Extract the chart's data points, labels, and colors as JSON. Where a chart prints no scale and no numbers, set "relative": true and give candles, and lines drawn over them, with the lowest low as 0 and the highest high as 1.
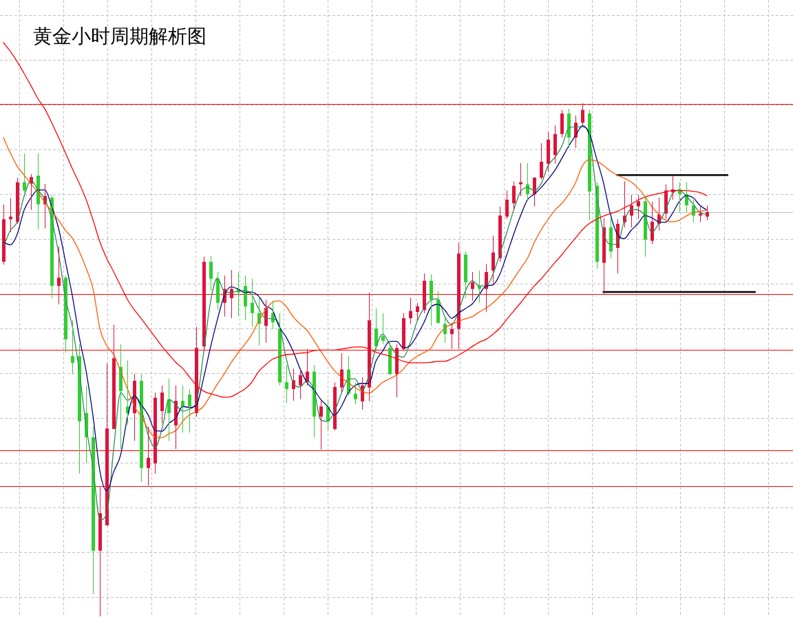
{
  "chart_data": {
    "type": "candlestick",
    "title": "黄金小时周期解析图",
    "relative": true,
    "grid": true,
    "categories": [
      null,
      null,
      null,
      null,
      null,
      null,
      null,
      null,
      null,
      null,
      null,
      null,
      null,
      null,
      null,
      null,
      null,
      null,
      null,
      null,
      null,
      null,
      null,
      null,
      null,
      null,
      null,
      null,
      null,
      null,
      null,
      null,
      null,
      null,
      null,
      null,
      null,
      null,
      null,
      null,
      null,
      null,
      null,
      null,
      null,
      null,
      null,
      null,
      null,
      null,
      null,
      null,
      null,
      null,
      null,
      null,
      null,
      null,
      null,
      null,
      null,
      null,
      null,
      null,
      null,
      null,
      null,
      null,
      null,
      null,
      null,
      null,
      null,
      null,
      null,
      null,
      null,
      null,
      null,
      null,
      null,
      null,
      null,
      null,
      null,
      null,
      null,
      null,
      null,
      null,
      null,
      null,
      null,
      null,
      null,
      null,
      null,
      null,
      null,
      null,
      null,
      null,
      null,
      null,
      null,
      null,
      null,
      null,
      null,
      null,
      null,
      null,
      null,
      null,
      null
    ],
    "ohlc": [
      [
        0.691,
        0.803,
        0.685,
        0.774
      ],
      [
        0.774,
        0.815,
        0.749,
        0.779
      ],
      [
        0.769,
        0.855,
        0.765,
        0.846
      ],
      [
        0.846,
        0.902,
        0.826,
        0.83
      ],
      [
        0.843,
        0.862,
        0.792,
        0.856
      ],
      [
        0.859,
        0.902,
        0.754,
        0.803
      ],
      [
        0.803,
        0.843,
        0.756,
        0.819
      ],
      [
        0.816,
        0.821,
        0.62,
        0.644
      ],
      [
        0.644,
        0.721,
        0.608,
        0.66
      ],
      [
        0.66,
        0.664,
        0.514,
        0.54
      ],
      [
        0.507,
        0.577,
        0.472,
        0.494
      ],
      [
        0.507,
        0.53,
        0.278,
        0.38
      ],
      [
        0.396,
        0.45,
        0.299,
        0.349
      ],
      [
        0.349,
        0.369,
        0.043,
        0.128
      ],
      [
        0.128,
        0.252,
        0,
        0.201
      ],
      [
        0.177,
        0.493,
        0.177,
        0.366
      ],
      [
        0.365,
        0.568,
        0.365,
        0.503
      ],
      [
        0.486,
        0.53,
        0.326,
        0.439
      ],
      [
        0.409,
        0.499,
        0.373,
        0.396
      ],
      [
        0.396,
        0.472,
        0.342,
        0.459
      ],
      [
        0.459,
        0.472,
        0.262,
        0.289
      ],
      [
        0.289,
        0.369,
        0.255,
        0.309
      ],
      [
        0.298,
        0.436,
        0.278,
        0.426
      ],
      [
        0.4,
        0.45,
        0.376,
        0.436
      ],
      [
        0.423,
        0.463,
        0.342,
        0.396
      ],
      [
        0.372,
        0.45,
        0.326,
        0.42
      ],
      [
        0.42,
        0.45,
        0.358,
        0.409
      ],
      [
        0.432,
        0.443,
        0.358,
        0.409
      ],
      [
        0.396,
        0.564,
        0.389,
        0.523
      ],
      [
        0.526,
        0.701,
        0.517,
        0.691
      ],
      [
        0.691,
        0.702,
        0.634,
        0.658
      ],
      [
        0.658,
        0.671,
        0.597,
        0.611
      ],
      [
        0.611,
        0.664,
        0.584,
        0.638
      ],
      [
        0.62,
        0.675,
        0.581,
        0.638
      ],
      [
        0.638,
        0.671,
        0.584,
        0.631
      ],
      [
        0.644,
        0.664,
        0.577,
        0.604
      ],
      [
        0.611,
        0.658,
        0.564,
        0.591
      ],
      [
        0.591,
        0.624,
        0.528,
        0.57
      ],
      [
        0.566,
        0.617,
        0.533,
        0.601
      ],
      [
        0.591,
        0.615,
        0.56,
        0.573
      ],
      [
        0.561,
        0.591,
        0.45,
        0.456
      ],
      [
        0.456,
        0.49,
        0.416,
        0.443
      ],
      [
        0.443,
        0.483,
        0.42,
        0.46
      ],
      [
        0.45,
        0.483,
        0.423,
        0.47
      ],
      [
        0.456,
        0.521,
        0.45,
        0.477
      ],
      [
        0.477,
        0.49,
        0.349,
        0.389
      ],
      [
        0.389,
        0.42,
        0.325,
        0.409
      ],
      [
        0.409,
        0.423,
        0.362,
        0.38
      ],
      [
        0.365,
        0.456,
        0.362,
        0.447
      ],
      [
        0.446,
        0.513,
        0.436,
        0.481
      ],
      [
        0.481,
        0.507,
        0.43,
        0.434
      ],
      [
        0.434,
        0.456,
        0.413,
        0.423
      ],
      [
        0.419,
        0.466,
        0.403,
        0.45
      ],
      [
        0.446,
        0.631,
        0.419,
        0.577
      ],
      [
        0.561,
        0.6,
        0.517,
        0.526
      ],
      [
        0.546,
        0.591,
        0.53,
        0.537
      ],
      [
        0.523,
        0.537,
        0.47,
        0.472
      ],
      [
        0.472,
        0.53,
        0.427,
        0.523
      ],
      [
        0.521,
        0.591,
        0.517,
        0.581
      ],
      [
        0.581,
        0.621,
        0.57,
        0.595
      ],
      [
        0.593,
        0.611,
        0.577,
        0.604
      ],
      [
        0.597,
        0.668,
        0.591,
        0.654
      ],
      [
        0.654,
        0.667,
        0.566,
        0.617
      ],
      [
        0.617,
        0.634,
        0.57,
        0.572
      ],
      [
        0.57,
        0.581,
        0.533,
        0.55
      ],
      [
        0.55,
        0.573,
        0.521,
        0.56
      ],
      [
        0.56,
        0.728,
        0.521,
        0.707
      ],
      [
        0.705,
        0.711,
        0.62,
        0.651
      ],
      [
        0.638,
        0.671,
        0.615,
        0.651
      ],
      [
        0.644,
        0.674,
        0.611,
        0.638
      ],
      [
        0.638,
        0.687,
        0.593,
        0.671
      ],
      [
        0.674,
        0.742,
        0.648,
        0.709
      ],
      [
        0.698,
        0.799,
        0.691,
        0.781
      ],
      [
        0.779,
        0.83,
        0.774,
        0.812
      ],
      [
        0.805,
        0.848,
        0.792,
        0.839
      ],
      [
        0.842,
        0.883,
        0.819,
        0.846
      ],
      [
        0.842,
        0.883,
        0.812,
        0.823
      ],
      [
        0.823,
        0.856,
        0.799,
        0.855
      ],
      [
        0.855,
        0.922,
        0.852,
        0.886
      ],
      [
        0.882,
        0.944,
        0.866,
        0.929
      ],
      [
        0.899,
        0.957,
        0.882,
        0.94
      ],
      [
        0.94,
        0.987,
        0.933,
        0.98
      ],
      [
        0.98,
        0.989,
        0.913,
        0.933
      ],
      [
        0.933,
        0.976,
        0.913,
        0.962
      ],
      [
        0.962,
        1,
        0.957,
        0.987
      ],
      [
        0.98,
        0.987,
        0.772,
        0.828
      ],
      [
        0.839,
        0.846,
        0.678,
        0.691
      ],
      [
        0.689,
        0.776,
        0.628,
        0.758
      ],
      [
        0.758,
        0.776,
        0.698,
        0.711
      ],
      [
        0.718,
        0.774,
        0.668,
        0.765
      ],
      [
        0.768,
        0.848,
        0.758,
        0.781
      ],
      [
        0.781,
        0.821,
        0.758,
        0.801
      ],
      [
        0.799,
        0.821,
        0.774,
        0.809
      ],
      [
        0.809,
        0.819,
        0.701,
        0.734
      ],
      [
        0.732,
        0.808,
        0.725,
        0.769
      ],
      [
        0.765,
        0.816,
        0.752,
        0.783
      ],
      [
        0.785,
        0.842,
        0.774,
        0.83
      ],
      [
        0.826,
        0.859,
        0.812,
        0.832
      ],
      [
        0.832,
        0.846,
        0.788,
        0.823
      ],
      [
        0.823,
        0.846,
        0.788,
        0.801
      ],
      [
        0.801,
        0.812,
        0.768,
        0.781
      ],
      [
        0.781,
        0.799,
        0.768,
        0.785
      ],
      [
        0.779,
        0.801,
        0.772,
        0.788
      ],
      null,
      null,
      null,
      null,
      null,
      null,
      null,
      null,
      null,
      null,
      null,
      null
    ],
    "colors": [
      "#dc143c",
      "#dc143c",
      "#dc143c",
      "#32cd32",
      "#dc143c",
      "#32cd32",
      "#dc143c",
      "#32cd32",
      "#dc143c",
      "#32cd32",
      "#32cd32",
      "#32cd32",
      "#32cd32",
      "#32cd32",
      "#dc143c",
      "#dc143c",
      "#dc143c",
      "#32cd32",
      "#32cd32",
      "#dc143c",
      "#32cd32",
      "#dc143c",
      "#dc143c",
      "#dc143c",
      "#32cd32",
      "#dc143c",
      "#32cd32",
      "#32cd32",
      "#dc143c",
      "#dc143c",
      "#32cd32",
      "#32cd32",
      "#dc143c",
      "#dc143c",
      "#32cd32",
      "#32cd32",
      "#32cd32",
      "#32cd32",
      "#dc143c",
      "#32cd32",
      "#32cd32",
      "#32cd32",
      "#dc143c",
      "#dc143c",
      "#dc143c",
      "#32cd32",
      "#dc143c",
      "#32cd32",
      "#dc143c",
      "#dc143c",
      "#32cd32",
      "#32cd32",
      "#dc143c",
      "#dc143c",
      "#32cd32",
      "#32cd32",
      "#32cd32",
      "#dc143c",
      "#dc143c",
      "#dc143c",
      "#dc143c",
      "#dc143c",
      "#32cd32",
      "#32cd32",
      "#32cd32",
      "#dc143c",
      "#dc143c",
      "#32cd32",
      "#dc143c",
      "#32cd32",
      "#dc143c",
      "#dc143c",
      "#dc143c",
      "#dc143c",
      "#dc143c",
      "#dc143c",
      "#32cd32",
      "#dc143c",
      "#dc143c",
      "#dc143c",
      "#dc143c",
      "#dc143c",
      "#32cd32",
      "#dc143c",
      "#dc143c",
      "#32cd32",
      "#32cd32",
      "#dc143c",
      "#32cd32",
      "#dc143c",
      "#dc143c",
      "#dc143c",
      "#dc143c",
      "#32cd32",
      "#dc143c",
      "#dc143c",
      "#dc143c",
      "#dc143c",
      "#32cd32",
      "#32cd32",
      "#32cd32",
      "#dc143c",
      "#dc143c",
      null,
      null,
      null,
      null,
      null,
      null,
      null,
      null,
      null,
      null,
      null,
      null
    ],
    "series": [
      {
        "type": "line",
        "color": "#ff0000",
        "values": [
          1.118,
          1.101,
          1.081,
          1.058,
          1.034,
          1.009,
          0.989,
          0.962,
          0.933,
          0.903,
          0.872,
          0.844,
          0.812,
          0.772,
          0.729,
          0.697,
          0.671,
          0.644,
          0.617,
          0.597,
          0.58,
          0.562,
          0.544,
          0.526,
          0.51,
          0.495,
          0.483,
          0.466,
          0.45,
          0.439,
          0.434,
          0.43,
          0.427,
          0.428,
          0.435,
          0.443,
          0.456,
          0.477,
          0.49,
          0.501,
          0.506,
          0.51,
          0.511,
          0.513,
          0.514,
          0.518,
          0.519,
          0.519,
          0.519,
          0.521,
          0.523,
          0.525,
          0.525,
          0.521,
          0.515,
          0.511,
          0.507,
          0.502,
          0.497,
          0.494,
          0.494,
          0.494,
          0.495,
          0.497,
          0.497,
          0.502,
          0.509,
          0.517,
          0.526,
          0.534,
          0.54,
          0.55,
          0.562,
          0.579,
          0.595,
          0.611,
          0.628,
          0.644,
          0.658,
          0.674,
          0.69,
          0.705,
          0.722,
          0.738,
          0.754,
          0.766,
          0.774,
          0.78,
          0.785,
          0.789,
          0.796,
          0.803,
          0.811,
          0.817,
          0.821,
          0.824,
          0.827,
          0.83,
          0.83,
          0.83,
          0.828,
          0.826,
          0.82,
          null,
          null,
          null,
          null,
          null,
          null,
          null,
          null,
          null,
          null,
          null,
          null
        ]
      },
      {
        "type": "line",
        "color": "#ff5a00",
        "values": [
          0.933,
          0.903,
          0.877,
          0.86,
          0.843,
          0.826,
          0.807,
          0.789,
          0.772,
          0.752,
          0.737,
          0.711,
          0.678,
          0.638,
          0.56,
          0.527,
          0.51,
          0.477,
          0.443,
          0.409,
          0.389,
          0.365,
          0.349,
          0.348,
          0.356,
          0.362,
          0.38,
          0.393,
          0.399,
          0.409,
          0.43,
          0.452,
          0.472,
          0.494,
          0.513,
          0.53,
          0.549,
          0.575,
          0.597,
          0.612,
          0.615,
          0.604,
          0.584,
          0.57,
          0.558,
          0.538,
          0.517,
          0.497,
          0.479,
          0.466,
          0.455,
          0.446,
          0.438,
          0.435,
          0.444,
          0.456,
          0.463,
          0.47,
          0.482,
          0.497,
          0.507,
          0.514,
          0.523,
          0.546,
          0.562,
          0.569,
          0.575,
          0.58,
          0.584,
          0.593,
          0.601,
          0.611,
          0.624,
          0.638,
          0.658,
          0.678,
          0.698,
          0.729,
          0.754,
          0.774,
          0.792,
          0.805,
          0.823,
          0.846,
          0.879,
          0.89,
          0.887,
          0.879,
          0.868,
          0.86,
          0.854,
          0.847,
          0.835,
          0.819,
          0.799,
          0.784,
          0.772,
          0.769,
          0.772,
          0.78,
          0.787,
          0.789,
          0.792,
          null,
          null,
          null,
          null,
          null,
          null,
          null,
          null,
          null,
          null,
          null,
          null
        ]
      },
      {
        "type": "line",
        "color": "#000080",
        "values": [
          0.729,
          0.724,
          0.745,
          0.792,
          0.816,
          0.831,
          0.831,
          0.799,
          0.756,
          0.691,
          0.624,
          0.544,
          0.477,
          0.389,
          0.282,
          0.244,
          0.282,
          0.315,
          0.389,
          0.43,
          0.412,
          0.392,
          0.362,
          0.361,
          0.376,
          0.387,
          0.409,
          0.407,
          0.412,
          0.463,
          0.523,
          0.577,
          0.624,
          0.642,
          0.638,
          0.631,
          0.632,
          0.624,
          0.605,
          0.597,
          0.564,
          0.544,
          0.517,
          0.483,
          0.456,
          0.442,
          0.423,
          0.409,
          0.392,
          0.409,
          0.436,
          0.45,
          0.454,
          0.454,
          0.497,
          0.517,
          0.536,
          0.536,
          0.523,
          0.528,
          0.548,
          0.573,
          0.603,
          0.608,
          0.597,
          0.581,
          0.591,
          0.6,
          0.609,
          0.627,
          0.644,
          0.646,
          0.667,
          0.705,
          0.745,
          0.781,
          0.812,
          0.823,
          0.836,
          0.852,
          0.87,
          0.893,
          0.917,
          0.938,
          0.956,
          0.94,
          0.893,
          0.846,
          0.785,
          0.745,
          0.736,
          0.752,
          0.765,
          0.781,
          0.777,
          0.769,
          0.768,
          0.785,
          0.808,
          0.82,
          0.816,
          0.801,
          0.792,
          null,
          null,
          null,
          null,
          null,
          null,
          null,
          null,
          null,
          null,
          null,
          null
        ]
      },
      {
        "type": "line",
        "color": "#2e8b57",
        "values": [
          0.721,
          0.752,
          0.769,
          0.819,
          0.85,
          0.831,
          0.813,
          0.774,
          0.707,
          0.62,
          0.564,
          0.477,
          0.369,
          0.289,
          0.188,
          0.201,
          0.329,
          0.436,
          0.421,
          0.43,
          0.403,
          0.353,
          0.329,
          0.366,
          0.423,
          0.412,
          0.4,
          0.404,
          0.419,
          0.51,
          0.611,
          0.659,
          0.634,
          0.631,
          0.634,
          0.635,
          0.627,
          0.6,
          0.581,
          0.58,
          0.568,
          0.503,
          0.456,
          0.447,
          0.459,
          0.443,
          0.383,
          0.38,
          0.399,
          0.434,
          0.463,
          0.463,
          0.44,
          0.47,
          0.523,
          0.55,
          0.53,
          0.511,
          0.505,
          0.534,
          0.575,
          0.601,
          0.616,
          0.619,
          0.584,
          0.568,
          0.595,
          0.634,
          0.654,
          0.644,
          0.644,
          0.667,
          0.707,
          0.748,
          0.792,
          0.828,
          0.836,
          0.83,
          0.844,
          0.879,
          0.895,
          0.917,
          0.952,
          0.954,
          0.954,
          0.933,
          0.826,
          0.75,
          0.725,
          0.725,
          0.769,
          0.793,
          0.792,
          0.781,
          0.748,
          0.765,
          0.791,
          0.823,
          0.831,
          0.819,
          0.804,
          0.787,
          0.783,
          null,
          null,
          null,
          null,
          null,
          null,
          null,
          null,
          null,
          null,
          null,
          null
        ]
      },
      {
        "type": "line",
        "color": "#000000",
        "values": [
          null,
          null,
          null,
          null,
          null,
          null,
          null,
          null,
          null,
          null,
          null,
          null,
          null,
          null,
          null,
          null,
          null,
          null,
          null,
          null,
          null,
          null,
          null,
          null,
          null,
          null,
          null,
          null,
          null,
          null,
          null,
          null,
          null,
          null,
          null,
          null,
          null,
          null,
          null,
          null,
          null,
          null,
          null,
          null,
          null,
          null,
          null,
          null,
          null,
          null,
          null,
          null,
          null,
          null,
          null,
          null,
          null,
          null,
          null,
          null,
          null,
          null,
          null,
          null,
          null,
          null,
          null,
          null,
          null,
          null,
          null,
          null,
          null,
          null,
          null,
          null,
          null,
          null,
          null,
          null,
          null,
          null,
          null,
          null,
          null,
          null,
          null,
          null,
          null,
          0.86,
          0.86,
          0.86,
          0.86,
          0.86,
          0.86,
          0.86,
          0.86,
          0.86,
          0.86,
          0.86,
          0.86,
          0.86,
          0.86,
          0.86,
          0.86,
          0.86,
          null,
          null,
          null,
          null,
          null,
          null,
          null,
          null,
          null
        ]
      },
      {
        "type": "line",
        "color": "#000000",
        "values": [
          null,
          null,
          null,
          null,
          null,
          null,
          null,
          null,
          null,
          null,
          null,
          null,
          null,
          null,
          null,
          null,
          null,
          null,
          null,
          null,
          null,
          null,
          null,
          null,
          null,
          null,
          null,
          null,
          null,
          null,
          null,
          null,
          null,
          null,
          null,
          null,
          null,
          null,
          null,
          null,
          null,
          null,
          null,
          null,
          null,
          null,
          null,
          null,
          null,
          null,
          null,
          null,
          null,
          null,
          null,
          null,
          null,
          null,
          null,
          null,
          null,
          null,
          null,
          null,
          null,
          null,
          null,
          null,
          null,
          null,
          null,
          null,
          null,
          null,
          null,
          null,
          null,
          null,
          null,
          null,
          null,
          null,
          null,
          null,
          null,
          null,
          null,
          0.632,
          0.632,
          0.632,
          0.632,
          0.632,
          0.632,
          0.632,
          0.632,
          0.632,
          0.632,
          0.632,
          0.632,
          0.632,
          0.632,
          0.632,
          0.632,
          0.632,
          0.632,
          0.632,
          0.632,
          0.632,
          0.632,
          0.632,
          null,
          null,
          null,
          null,
          null
        ]
      }
    ],
    "ref_lines": [
      {
        "axis": "y",
        "value": 0.998,
        "color": "#ff0000"
      },
      {
        "axis": "y",
        "value": 0.788,
        "color": "#c0c0c0"
      },
      {
        "axis": "y",
        "value": 0.628,
        "color": "#ff0000"
      },
      {
        "axis": "y",
        "value": 0.519,
        "color": "#ff0000"
      },
      {
        "axis": "y",
        "value": 0.324,
        "color": "#ff0000"
      },
      {
        "axis": "y",
        "value": 0.253,
        "color": "#ff0000"
      }
    ]
  }
}
